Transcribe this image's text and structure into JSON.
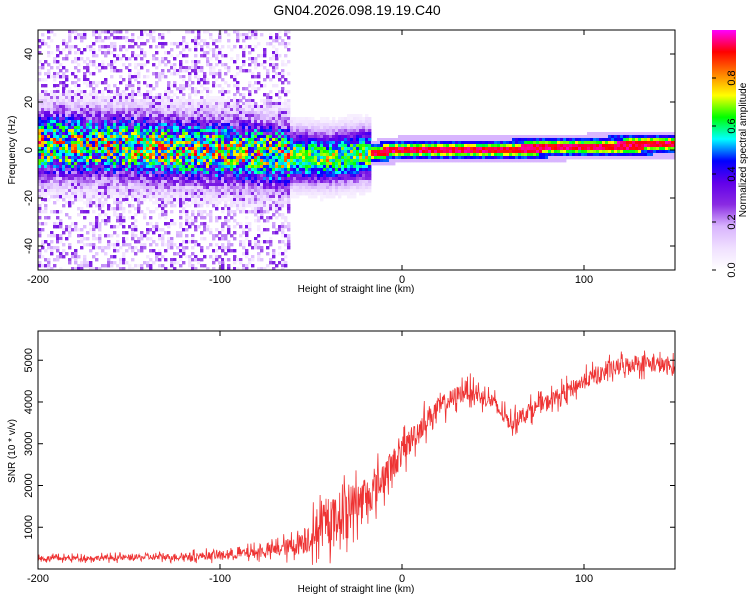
{
  "title": "GN04.2026.098.19.19.C40",
  "chart_data": [
    {
      "type": "heatmap",
      "name": "spectrogram",
      "xlabel": "Height of straight line (km)",
      "ylabel": "Frequency (Hz)",
      "xlim": [
        -200,
        150
      ],
      "ylim": [
        -50,
        50
      ],
      "xticks": [
        "-200",
        "-100",
        "0",
        "100"
      ],
      "yticks": [
        "-40",
        "-20",
        "0",
        "20",
        "40"
      ],
      "ridge": {
        "x": [
          -200,
          -150,
          -100,
          -60,
          -40,
          -20,
          0,
          20,
          60,
          100,
          150
        ],
        "freq_hz": [
          3,
          2,
          0,
          -2,
          -3,
          -1,
          1,
          1,
          1,
          2,
          3
        ]
      },
      "colorbar": {
        "label": "Normalized spectral amplitude",
        "range": [
          0,
          1
        ],
        "ticks": [
          "0.0",
          "0.2",
          "0.4",
          "0.6",
          "0.8"
        ],
        "colors": [
          "#ffffff",
          "#f0e0ff",
          "#d8b4fe",
          "#8a2be2",
          "#6200ea",
          "#0000ff",
          "#00ffff",
          "#00ff00",
          "#ffff00",
          "#ff8000",
          "#ff0000",
          "#ff00ff"
        ]
      }
    },
    {
      "type": "line",
      "name": "snr",
      "xlabel": "Height of straight line (km)",
      "ylabel": "SNR (10 * v/v)",
      "xlim": [
        -200,
        150
      ],
      "ylim": [
        0,
        5700
      ],
      "xticks": [
        "-200",
        "-100",
        "0",
        "100"
      ],
      "yticks": [
        "1000",
        "2000",
        "3000",
        "4000",
        "5000"
      ],
      "color": "#ee3333",
      "x": [
        -200,
        -180,
        -160,
        -140,
        -120,
        -100,
        -90,
        -80,
        -70,
        -60,
        -55,
        -50,
        -45,
        -40,
        -35,
        -30,
        -25,
        -20,
        -15,
        -10,
        -5,
        0,
        5,
        10,
        15,
        20,
        25,
        30,
        35,
        40,
        45,
        50,
        55,
        60,
        65,
        70,
        75,
        80,
        90,
        100,
        110,
        120,
        130,
        140,
        150
      ],
      "mean": [
        250,
        260,
        270,
        280,
        300,
        330,
        360,
        400,
        460,
        550,
        650,
        800,
        950,
        1100,
        1300,
        1450,
        1600,
        1700,
        1900,
        2200,
        2500,
        2800,
        3100,
        3400,
        3650,
        3850,
        4000,
        4150,
        4300,
        4200,
        4100,
        4000,
        3700,
        3500,
        3650,
        3800,
        3900,
        4000,
        4250,
        4500,
        4700,
        4850,
        4950,
        4900,
        4800
      ],
      "spread": [
        120,
        120,
        130,
        140,
        160,
        200,
        230,
        260,
        300,
        450,
        600,
        800,
        900,
        1000,
        1050,
        1100,
        1000,
        900,
        850,
        800,
        750,
        700,
        650,
        600,
        550,
        500,
        480,
        460,
        450,
        420,
        400,
        380,
        380,
        380,
        380,
        380,
        380,
        380,
        380,
        380,
        400,
        420,
        420,
        400,
        380
      ]
    }
  ]
}
